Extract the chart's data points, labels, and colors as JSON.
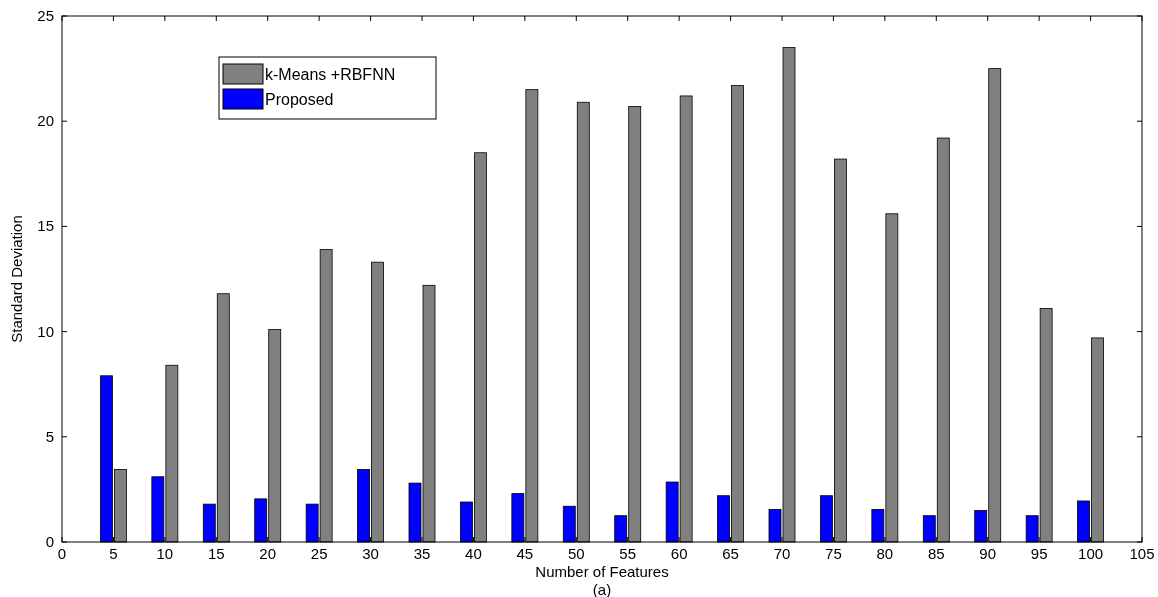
{
  "chart_data": {
    "type": "bar",
    "xlabel": "Number of Features",
    "ylabel": "Standard Deviation",
    "annotations": [
      "(a)"
    ],
    "x": [
      5,
      10,
      15,
      20,
      25,
      30,
      35,
      40,
      45,
      50,
      55,
      60,
      65,
      70,
      75,
      80,
      85,
      90,
      95,
      100
    ],
    "series": [
      {
        "name": "k-Means +RBFNN",
        "color": "#808080",
        "values": [
          3.45,
          8.4,
          11.8,
          10.1,
          13.9,
          13.3,
          12.2,
          18.5,
          21.5,
          20.9,
          20.7,
          21.2,
          21.7,
          23.5,
          18.2,
          15.6,
          19.2,
          22.5,
          11.1,
          9.7
        ]
      },
      {
        "name": "Proposed",
        "color": "#0000ff",
        "values": [
          7.9,
          3.1,
          1.8,
          2.05,
          1.8,
          3.45,
          2.8,
          1.9,
          2.3,
          1.7,
          1.25,
          2.85,
          2.2,
          1.55,
          2.2,
          1.55,
          1.25,
          1.5,
          1.25,
          1.95
        ]
      }
    ],
    "xlim": [
      0,
      105
    ],
    "xticks": [
      0,
      5,
      10,
      15,
      20,
      25,
      30,
      35,
      40,
      45,
      50,
      55,
      60,
      65,
      70,
      75,
      80,
      85,
      90,
      95,
      100,
      105
    ],
    "ylim": [
      0,
      25
    ],
    "yticks": [
      0,
      5,
      10,
      15,
      20,
      25
    ],
    "grid": false,
    "legend": "top left"
  }
}
